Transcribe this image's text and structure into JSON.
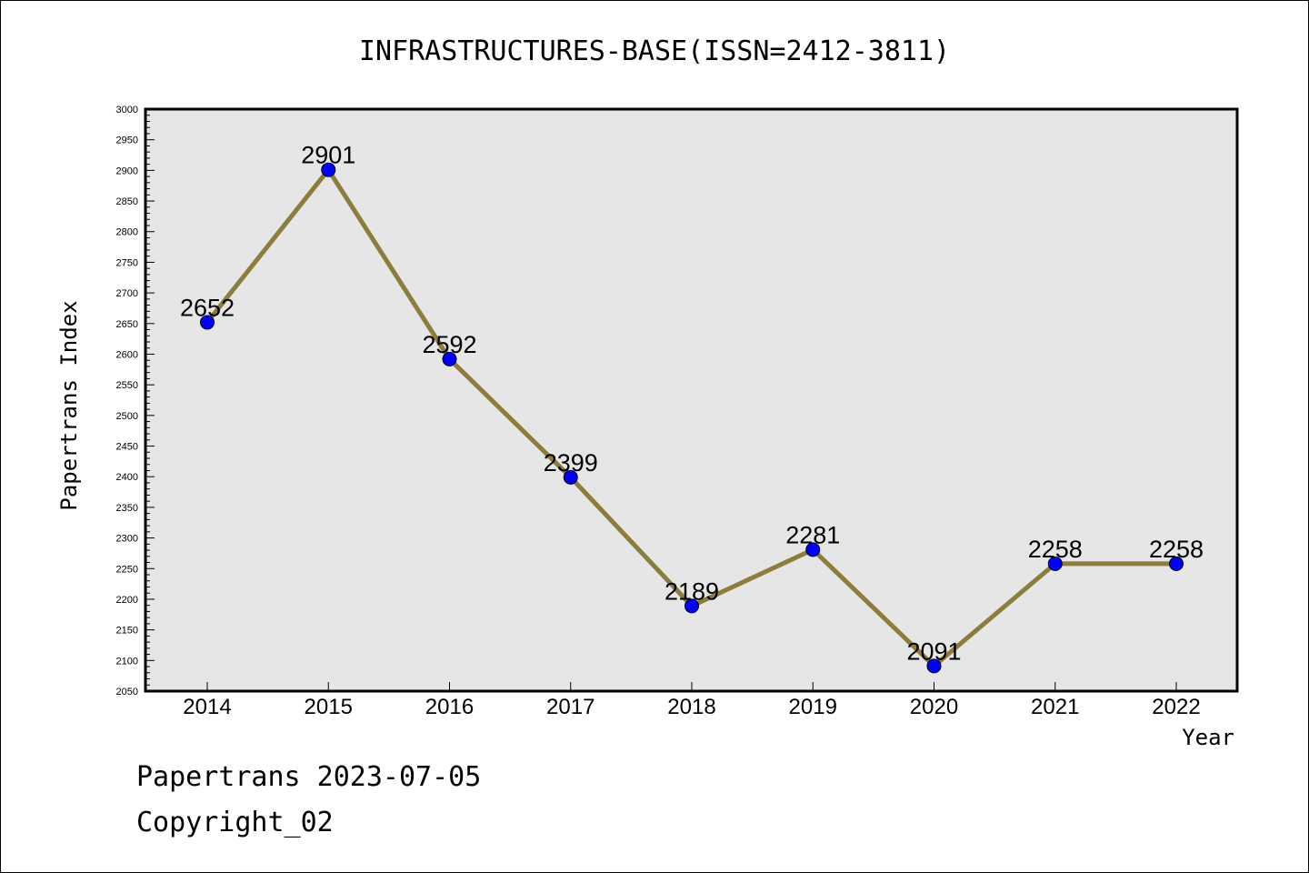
{
  "chart_data": {
    "type": "line",
    "title": "INFRASTRUCTURES-BASE(ISSN=2412-3811)",
    "xlabel": "Year",
    "ylabel": "Papertrans Index",
    "categories": [
      "2014",
      "2015",
      "2016",
      "2017",
      "2018",
      "2019",
      "2020",
      "2021",
      "2022"
    ],
    "values": [
      2652,
      2901,
      2592,
      2399,
      2189,
      2281,
      2091,
      2258,
      2258
    ],
    "ylim": [
      2050,
      3000
    ],
    "yticks": [
      2050,
      2100,
      2150,
      2200,
      2250,
      2300,
      2350,
      2400,
      2450,
      2500,
      2550,
      2600,
      2650,
      2700,
      2750,
      2800,
      2850,
      2900,
      2950,
      3000
    ],
    "grid": false,
    "line_color": "#8c7d3a",
    "marker_color": "#0000ff",
    "plot_background": "#e6e6e6"
  },
  "footer": {
    "line1": "Papertrans 2023-07-05",
    "line2": "Copyright_02"
  }
}
